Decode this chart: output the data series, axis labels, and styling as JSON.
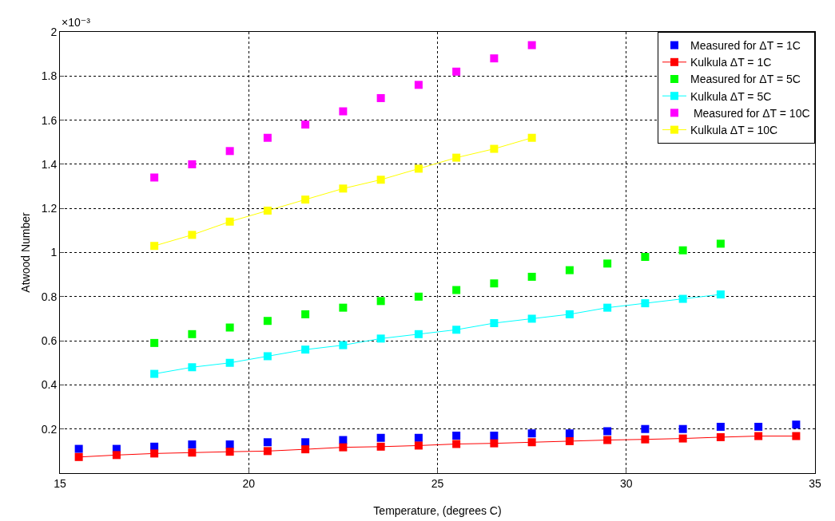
{
  "chart_data": {
    "type": "scatter",
    "xlabel": "Temperature, (degrees C)",
    "ylabel": "Atwood Number",
    "annotations": [
      "×10⁻³"
    ],
    "xlim": [
      15,
      35
    ],
    "xticks": [
      15,
      20,
      25,
      30,
      35
    ],
    "ylim": [
      0,
      2
    ],
    "yticks": [
      0.2,
      0.4,
      0.6,
      0.8,
      1,
      1.2,
      1.4,
      1.6,
      1.8,
      2
    ],
    "grid": true,
    "legend": "top right",
    "marker": "square",
    "line_style": "solid",
    "series": [
      {
        "name": "Measured for ΔT = 1C",
        "type": "scatter",
        "color": "#0000ff",
        "x": [
          15.5,
          16.5,
          17.5,
          18.5,
          19.5,
          20.5,
          21.5,
          22.5,
          23.5,
          24.5,
          25.5,
          26.5,
          27.5,
          28.5,
          29.5,
          30.5,
          31.5,
          32.5,
          33.5,
          34.5
        ],
        "values": [
          0.11,
          0.11,
          0.12,
          0.13,
          0.13,
          0.14,
          0.14,
          0.15,
          0.16,
          0.16,
          0.17,
          0.17,
          0.18,
          0.18,
          0.19,
          0.2,
          0.2,
          0.21,
          0.21,
          0.22
        ]
      },
      {
        "name": "Kulkula ΔT = 1C",
        "type": "line",
        "color": "#ff0000",
        "x": [
          15.5,
          16.5,
          17.5,
          18.5,
          19.5,
          20.5,
          21.5,
          22.5,
          23.5,
          24.5,
          25.5,
          26.5,
          27.5,
          28.5,
          29.5,
          30.5,
          31.5,
          32.5,
          33.5,
          34.5
        ],
        "values": [
          0.073,
          0.082,
          0.089,
          0.093,
          0.097,
          0.1,
          0.108,
          0.117,
          0.12,
          0.125,
          0.132,
          0.135,
          0.14,
          0.145,
          0.15,
          0.153,
          0.157,
          0.163,
          0.168,
          0.168
        ]
      },
      {
        "name": "Measured for ΔT = 5C",
        "type": "scatter",
        "color": "#00ff00",
        "x": [
          17.5,
          18.5,
          19.5,
          20.5,
          21.5,
          22.5,
          23.5,
          24.5,
          25.5,
          26.5,
          27.5,
          28.5,
          29.5,
          30.5,
          31.5,
          32.5
        ],
        "values": [
          0.59,
          0.63,
          0.66,
          0.69,
          0.72,
          0.75,
          0.78,
          0.8,
          0.83,
          0.86,
          0.89,
          0.92,
          0.95,
          0.98,
          1.01,
          1.04
        ]
      },
      {
        "name": "Kulkula ΔT = 5C",
        "type": "line",
        "color": "#00ffff",
        "x": [
          17.5,
          18.5,
          19.5,
          20.5,
          21.5,
          22.5,
          23.5,
          24.5,
          25.5,
          26.5,
          27.5,
          28.5,
          29.5,
          30.5,
          31.5,
          32.5
        ],
        "values": [
          0.45,
          0.48,
          0.5,
          0.53,
          0.56,
          0.58,
          0.61,
          0.63,
          0.65,
          0.68,
          0.7,
          0.72,
          0.75,
          0.77,
          0.79,
          0.81
        ]
      },
      {
        "name": " Measured for ΔT = 10C",
        "type": "scatter",
        "color": "#ff00ff",
        "x": [
          17.5,
          18.5,
          19.5,
          20.5,
          21.5,
          22.5,
          23.5,
          24.5,
          25.5,
          26.5,
          27.5
        ],
        "values": [
          1.34,
          1.4,
          1.46,
          1.52,
          1.58,
          1.64,
          1.7,
          1.76,
          1.82,
          1.88,
          1.94
        ]
      },
      {
        "name": "Kulkula ΔT = 10C",
        "type": "line",
        "color": "#ffff00",
        "x": [
          17.5,
          18.5,
          19.5,
          20.5,
          21.5,
          22.5,
          23.5,
          24.5,
          25.5,
          26.5,
          27.5
        ],
        "values": [
          1.03,
          1.08,
          1.14,
          1.19,
          1.24,
          1.29,
          1.33,
          1.38,
          1.43,
          1.47,
          1.52
        ]
      }
    ]
  }
}
